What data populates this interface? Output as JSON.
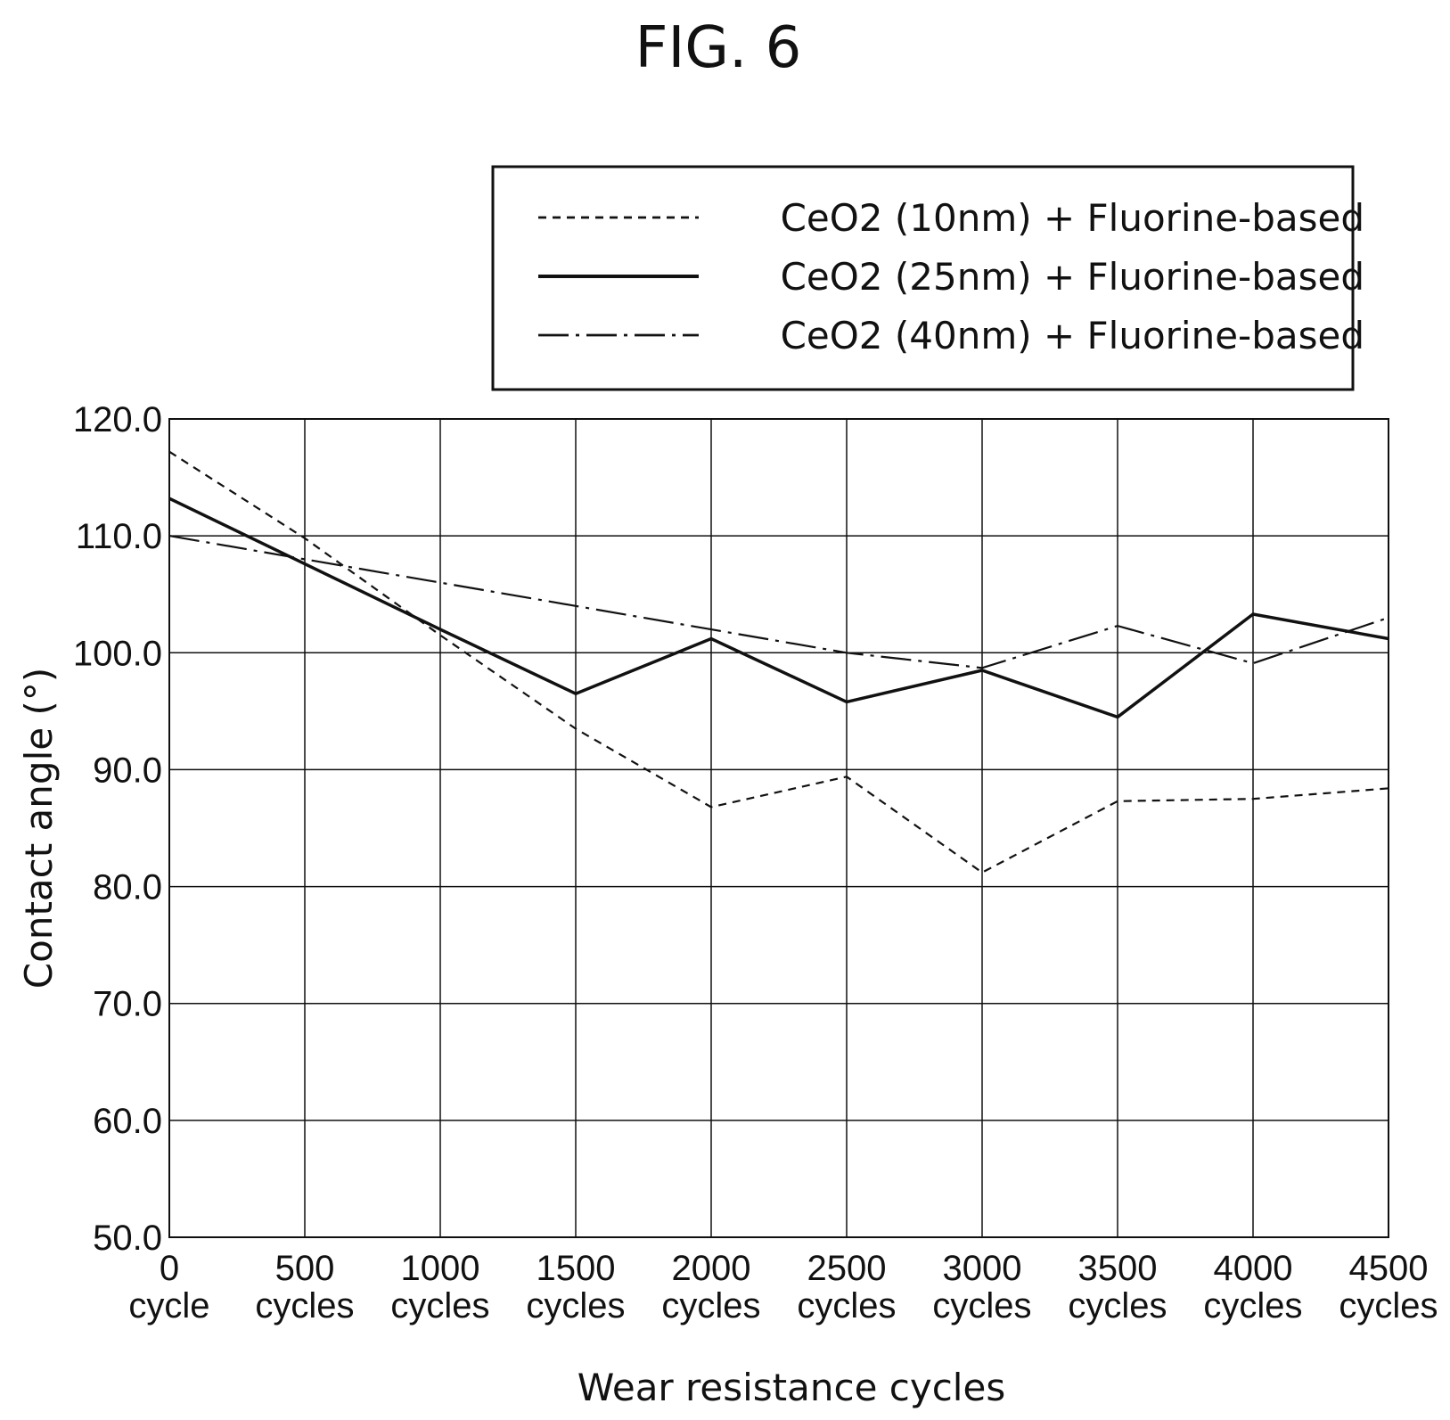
{
  "figure_label": "FIG. 6",
  "chart_data": {
    "type": "line",
    "title": "",
    "xlabel": "Wear resistance cycles",
    "ylabel": "Contact angle (°)",
    "ylim": [
      50,
      120
    ],
    "yticks": [
      "50.0",
      "60.0",
      "70.0",
      "80.0",
      "90.0",
      "100.0",
      "110.0",
      "120.0"
    ],
    "categories": [
      [
        "0",
        "cycle"
      ],
      [
        "500",
        "cycles"
      ],
      [
        "1000",
        "cycles"
      ],
      [
        "1500",
        "cycles"
      ],
      [
        "2000",
        "cycles"
      ],
      [
        "2500",
        "cycles"
      ],
      [
        "3000",
        "cycles"
      ],
      [
        "3500",
        "cycles"
      ],
      [
        "4000",
        "cycles"
      ],
      [
        "4500",
        "cycles"
      ]
    ],
    "x": [
      0,
      500,
      1000,
      1500,
      2000,
      2500,
      3000,
      3500,
      4000,
      4500
    ],
    "grid": true,
    "legend_position": "top-right",
    "series": [
      {
        "name": "CeO2 (10nm) + Fluorine-based",
        "line_style": "dashed",
        "values": [
          117.2,
          109.8,
          101.5,
          93.5,
          86.8,
          89.4,
          81.2,
          87.3,
          87.5,
          88.4
        ]
      },
      {
        "name": "CeO2 (25nm) + Fluorine-based",
        "line_style": "solid",
        "values": [
          113.2,
          107.6,
          102.0,
          96.5,
          101.2,
          95.8,
          98.5,
          94.5,
          103.3,
          101.2
        ]
      },
      {
        "name": "CeO2 (40nm) + Fluorine-based",
        "line_style": "dash-dot",
        "values": [
          110.0,
          108.0,
          106.0,
          104.0,
          102.0,
          100.0,
          98.7,
          102.3,
          99.1,
          103.0
        ]
      }
    ]
  }
}
